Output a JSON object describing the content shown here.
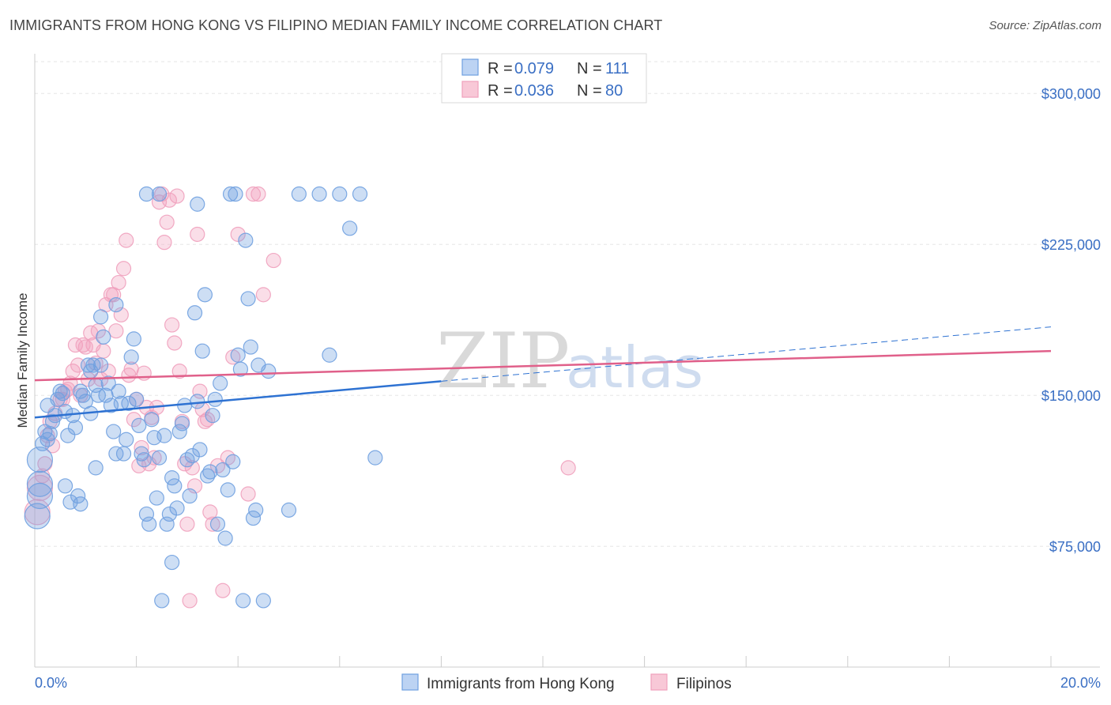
{
  "header": {
    "title": "IMMIGRANTS FROM HONG KONG VS FILIPINO MEDIAN FAMILY INCOME CORRELATION CHART",
    "source": "Source: ZipAtlas.com"
  },
  "colors": {
    "blue": "#6fa0e0",
    "blue_line": "#2e72d2",
    "pink": "#f0a0bc",
    "pink_line": "#e0608a",
    "grid": "#e6e6e6",
    "axis_text": "#3a6fc4"
  },
  "legend": {
    "r_label": "R =",
    "n_label": "N =",
    "blue": {
      "r": "0.079",
      "n": "111"
    },
    "pink": {
      "r": "0.036",
      "n": "80"
    }
  },
  "watermark": {
    "zip": "ZIP",
    "atlas": "atlas"
  },
  "chart_data": {
    "type": "scatter",
    "title": "IMMIGRANTS FROM HONG KONG VS FILIPINO MEDIAN FAMILY INCOME CORRELATION CHART",
    "xlabel": "",
    "ylabel": "Median Family Income",
    "xlim": [
      0,
      20
    ],
    "ylim": [
      15000,
      320000
    ],
    "x_tick_labels": [
      "0.0%",
      "20.0%"
    ],
    "y_ticks": [
      {
        "value": 75000,
        "label": "$75,000"
      },
      {
        "value": 150000,
        "label": "$150,000"
      },
      {
        "value": 225000,
        "label": "$225,000"
      },
      {
        "value": 300000,
        "label": "$300,000"
      }
    ],
    "series": [
      {
        "name": "Immigrants from Hong Kong",
        "color": "#6fa0e0",
        "trend": {
          "x0": 0,
          "y0": 139000,
          "x1": 8,
          "y1": 157000,
          "x_dash_end": 20,
          "y_dash_end": 184000
        },
        "points": [
          [
            0.05,
            90
          ],
          [
            0.1,
            100
          ],
          [
            0.1,
            106
          ],
          [
            0.1,
            118
          ],
          [
            0.15,
            126
          ],
          [
            0.2,
            132
          ],
          [
            0.25,
            145
          ],
          [
            0.25,
            128
          ],
          [
            0.3,
            131
          ],
          [
            0.35,
            137
          ],
          [
            0.4,
            140
          ],
          [
            0.45,
            148
          ],
          [
            0.5,
            152
          ],
          [
            0.55,
            151
          ],
          [
            0.6,
            142
          ],
          [
            0.65,
            130
          ],
          [
            0.7,
            97
          ],
          [
            0.75,
            140
          ],
          [
            0.8,
            134
          ],
          [
            0.85,
            100
          ],
          [
            0.9,
            152
          ],
          [
            0.95,
            150
          ],
          [
            1.0,
            147
          ],
          [
            1.05,
            165
          ],
          [
            1.1,
            141
          ],
          [
            1.15,
            165
          ],
          [
            1.2,
            155
          ],
          [
            1.25,
            150
          ],
          [
            1.3,
            165
          ],
          [
            1.35,
            179
          ],
          [
            1.4,
            150
          ],
          [
            1.45,
            156
          ],
          [
            1.5,
            145
          ],
          [
            1.55,
            132
          ],
          [
            1.6,
            121
          ],
          [
            1.65,
            152
          ],
          [
            1.7,
            146
          ],
          [
            1.75,
            121
          ],
          [
            1.8,
            128
          ],
          [
            1.85,
            146
          ],
          [
            1.9,
            169
          ],
          [
            1.95,
            178
          ],
          [
            2.0,
            148
          ],
          [
            2.05,
            135
          ],
          [
            2.1,
            121
          ],
          [
            2.15,
            118
          ],
          [
            2.2,
            91
          ],
          [
            2.25,
            86
          ],
          [
            2.3,
            138
          ],
          [
            2.35,
            129
          ],
          [
            2.4,
            99
          ],
          [
            2.45,
            119
          ],
          [
            2.5,
            48
          ],
          [
            2.55,
            130
          ],
          [
            2.6,
            86
          ],
          [
            2.65,
            91
          ],
          [
            2.7,
            109
          ],
          [
            2.75,
            105
          ],
          [
            2.8,
            94
          ],
          [
            2.85,
            132
          ],
          [
            2.9,
            136
          ],
          [
            2.95,
            145
          ],
          [
            3.0,
            118
          ],
          [
            3.05,
            100
          ],
          [
            3.1,
            120
          ],
          [
            3.15,
            191
          ],
          [
            3.2,
            147
          ],
          [
            3.25,
            123
          ],
          [
            3.3,
            172
          ],
          [
            3.35,
            200
          ],
          [
            3.4,
            110
          ],
          [
            3.45,
            112
          ],
          [
            3.5,
            140
          ],
          [
            3.55,
            148
          ],
          [
            3.6,
            86
          ],
          [
            3.65,
            156
          ],
          [
            3.7,
            113
          ],
          [
            3.75,
            79
          ],
          [
            3.8,
            103
          ],
          [
            3.85,
            250
          ],
          [
            3.9,
            117
          ],
          [
            3.95,
            250
          ],
          [
            4.0,
            170
          ],
          [
            4.05,
            163
          ],
          [
            4.1,
            48
          ],
          [
            4.15,
            227
          ],
          [
            4.2,
            198
          ],
          [
            4.25,
            174
          ],
          [
            4.3,
            89
          ],
          [
            4.35,
            93
          ],
          [
            4.4,
            165
          ],
          [
            4.5,
            48
          ],
          [
            4.6,
            162
          ],
          [
            5.0,
            93
          ],
          [
            5.2,
            250
          ],
          [
            5.6,
            250
          ],
          [
            5.8,
            170
          ],
          [
            6.0,
            250
          ],
          [
            6.2,
            233
          ],
          [
            6.4,
            250
          ],
          [
            6.7,
            119
          ],
          [
            1.6,
            195
          ],
          [
            1.3,
            189
          ],
          [
            2.45,
            250
          ],
          [
            2.7,
            67
          ],
          [
            2.2,
            250
          ],
          [
            0.6,
            105
          ],
          [
            0.9,
            96
          ],
          [
            3.2,
            245
          ],
          [
            1.1,
            162
          ],
          [
            1.2,
            114
          ]
        ]
      },
      {
        "name": "Filipinos",
        "color": "#f0a0bc",
        "trend": {
          "x0": 0,
          "y0": 157500,
          "x1": 20,
          "y1": 172000
        },
        "points": [
          [
            0.05,
            92
          ],
          [
            0.1,
            104
          ],
          [
            0.15,
            110
          ],
          [
            0.2,
            116
          ],
          [
            0.25,
            130
          ],
          [
            0.3,
            137
          ],
          [
            0.35,
            125
          ],
          [
            0.4,
            141
          ],
          [
            0.5,
            148
          ],
          [
            0.55,
            148
          ],
          [
            0.6,
            152
          ],
          [
            0.65,
            153
          ],
          [
            0.7,
            156
          ],
          [
            0.75,
            162
          ],
          [
            0.8,
            175
          ],
          [
            0.85,
            165
          ],
          [
            0.9,
            150
          ],
          [
            0.95,
            175
          ],
          [
            1.0,
            174
          ],
          [
            1.05,
            158
          ],
          [
            1.1,
            181
          ],
          [
            1.15,
            175
          ],
          [
            1.2,
            166
          ],
          [
            1.25,
            182
          ],
          [
            1.3,
            158
          ],
          [
            1.35,
            172
          ],
          [
            1.4,
            195
          ],
          [
            1.45,
            162
          ],
          [
            1.5,
            200
          ],
          [
            1.55,
            200
          ],
          [
            1.6,
            182
          ],
          [
            1.65,
            206
          ],
          [
            1.7,
            190
          ],
          [
            1.75,
            213
          ],
          [
            1.8,
            227
          ],
          [
            1.85,
            160
          ],
          [
            1.9,
            163
          ],
          [
            1.95,
            138
          ],
          [
            2.0,
            148
          ],
          [
            2.05,
            115
          ],
          [
            2.1,
            124
          ],
          [
            2.15,
            161
          ],
          [
            2.2,
            144
          ],
          [
            2.25,
            116
          ],
          [
            2.3,
            139
          ],
          [
            2.35,
            119
          ],
          [
            2.4,
            144
          ],
          [
            2.45,
            246
          ],
          [
            2.5,
            250
          ],
          [
            2.55,
            226
          ],
          [
            2.6,
            236
          ],
          [
            2.65,
            247
          ],
          [
            2.7,
            185
          ],
          [
            2.75,
            176
          ],
          [
            2.8,
            249
          ],
          [
            2.85,
            162
          ],
          [
            2.9,
            137
          ],
          [
            2.95,
            116
          ],
          [
            3.0,
            86
          ],
          [
            3.05,
            48
          ],
          [
            3.1,
            114
          ],
          [
            3.15,
            105
          ],
          [
            3.2,
            230
          ],
          [
            3.25,
            152
          ],
          [
            3.3,
            143
          ],
          [
            3.35,
            137
          ],
          [
            3.4,
            138
          ],
          [
            3.45,
            92
          ],
          [
            3.5,
            86
          ],
          [
            3.6,
            115
          ],
          [
            3.7,
            53
          ],
          [
            3.8,
            119
          ],
          [
            3.9,
            169
          ],
          [
            4.0,
            230
          ],
          [
            4.2,
            101
          ],
          [
            4.3,
            250
          ],
          [
            4.4,
            250
          ],
          [
            4.5,
            200
          ],
          [
            4.7,
            217
          ],
          [
            10.5,
            114
          ]
        ]
      }
    ]
  },
  "bottom_legend": {
    "blue_label": "Immigrants from Hong Kong",
    "pink_label": "Filipinos"
  }
}
